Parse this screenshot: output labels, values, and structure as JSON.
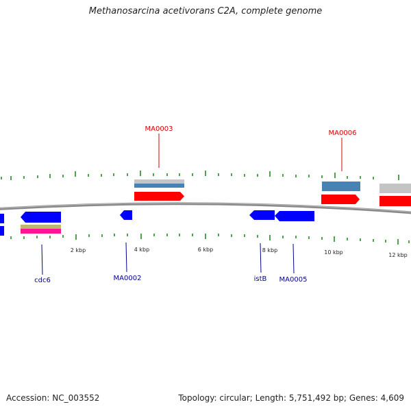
{
  "title": "Methanosarcina acetivorans C2A, complete genome",
  "footer": {
    "accession": "Accession: NC_003552",
    "summary": "Topology: circular; Length: 5,751,492 bp; Genes: 4,609"
  },
  "scale": {
    "labels": [
      "2 kbp",
      "4 kbp",
      "6 kbp",
      "8 kbp",
      "10 kbp",
      "12 kbp"
    ]
  },
  "colors": {
    "forward_cds": "#ff0000",
    "reverse_cds": "#0000ff",
    "forward_label": "#d40000",
    "reverse_label": "#00008b",
    "tick": "#228b22",
    "backbone": "#808080"
  },
  "genes": [
    {
      "name": "MA0003",
      "strand": "forward"
    },
    {
      "name": "MA0006",
      "strand": "forward"
    },
    {
      "name": "cdc6",
      "strand": "reverse"
    },
    {
      "name": "MA0002",
      "strand": "reverse"
    },
    {
      "name": "istB",
      "strand": "reverse"
    },
    {
      "name": "MA0005",
      "strand": "reverse"
    }
  ]
}
